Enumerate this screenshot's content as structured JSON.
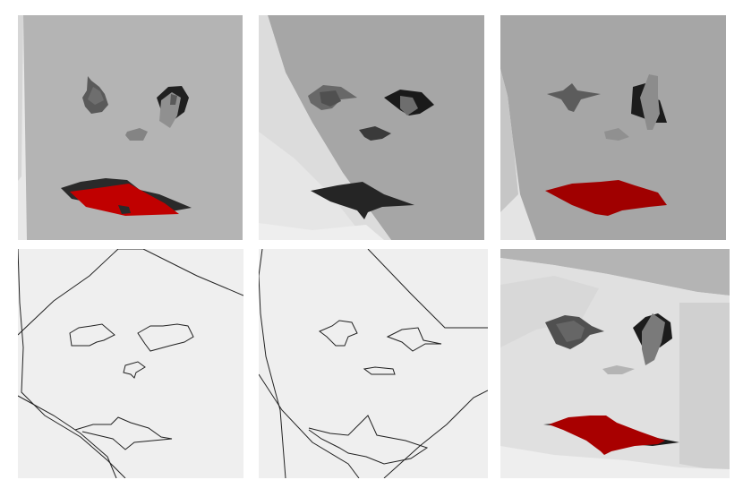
{
  "panels": [
    {
      "label": "",
      "style": "gray-rendered",
      "view": "front-slight-left"
    },
    {
      "label": "",
      "style": "gray-rendered",
      "view": "three-quarter-left"
    },
    {
      "label": "",
      "style": "gray-rendered",
      "view": "front-slight-right"
    },
    {
      "label": "",
      "style": "line-drawing",
      "view": "front"
    },
    {
      "label": "",
      "style": "line-drawing",
      "view": "three-quarter-left"
    },
    {
      "label": "",
      "style": "gray-rendered",
      "view": "front-low"
    }
  ],
  "colors": {
    "face_gray": "#b3b3b3",
    "face_mid": "#a6a6a6",
    "background_light": "#e6e6e6",
    "feature_dark": "#2a2a2a",
    "feature_mid": "#606060",
    "lips_red": "#c00000",
    "line_bg": "#efefef",
    "line_stroke": "#222222"
  }
}
